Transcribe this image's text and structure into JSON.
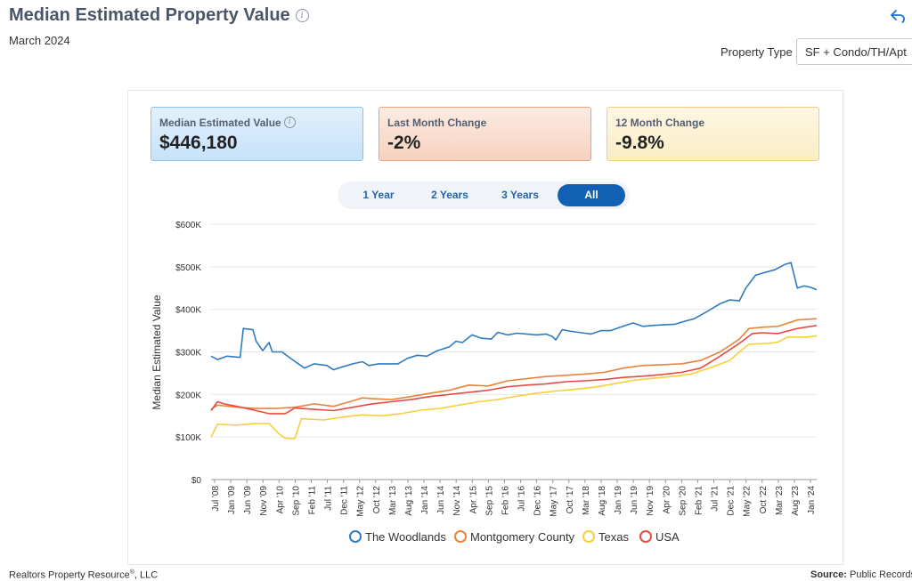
{
  "header": {
    "title": "Median Estimated Property Value",
    "subtitle": "March 2024",
    "property_type_label": "Property Type",
    "property_type_value": "SF + Condo/TH/Apt"
  },
  "cards": [
    {
      "label": "Median Estimated Value",
      "value": "$446,180"
    },
    {
      "label": "Last Month Change",
      "value": "-2%"
    },
    {
      "label": "12 Month Change",
      "value": "-9.8%"
    }
  ],
  "tabs": [
    "1 Year",
    "2 Years",
    "3 Years",
    "All"
  ],
  "active_tab": "All",
  "footer": {
    "left": "Realtors Property Resource",
    "left_mark": "®",
    "left_suffix": ", LLC",
    "source_label": "Source:",
    "source_text": "Public Records a"
  },
  "colors": {
    "The Woodlands": "#2f7bbf",
    "Montgomery County": "#e8833a",
    "Texas": "#f7cf3c",
    "USA": "#e54b44"
  },
  "chart_data": {
    "type": "line",
    "title": "",
    "xlabel": "",
    "ylabel": "Median Estimated Value",
    "ylim": [
      0,
      600000
    ],
    "yticks": [
      0,
      100000,
      200000,
      300000,
      400000,
      500000,
      600000
    ],
    "ytick_labels": [
      "$0",
      "$100K",
      "$200K",
      "$300K",
      "$400K",
      "$500K",
      "$600K"
    ],
    "x_tick_labels": [
      "Jul '08",
      "Jan '09",
      "Jun '09",
      "Nov '09",
      "Apr '10",
      "Sep '10",
      "Feb '11",
      "Jul '11",
      "Dec '11",
      "May '12",
      "Oct '12",
      "Mar '13",
      "Aug '13",
      "Jan '14",
      "Jun '14",
      "Nov '14",
      "Apr '15",
      "Sep '15",
      "Feb '16",
      "Jul '16",
      "Dec '16",
      "May '17",
      "Oct '17",
      "Mar '18",
      "Aug '18",
      "Jan '19",
      "Jun '19",
      "Nov '19",
      "Apr '20",
      "Sep '20",
      "Feb '21",
      "Jul '21",
      "Dec '21",
      "May '22",
      "Oct '22",
      "Mar '23",
      "Aug '23",
      "Jan '24"
    ],
    "x_range": [
      "2008-07",
      "2024-03"
    ],
    "grid": true,
    "legend_position": "bottom",
    "series": [
      {
        "name": "The Woodlands",
        "points": [
          [
            "2008-07",
            290000
          ],
          [
            "2008-09",
            282000
          ],
          [
            "2008-12",
            290000
          ],
          [
            "2009-04",
            287000
          ],
          [
            "2009-05",
            355000
          ],
          [
            "2009-08",
            352000
          ],
          [
            "2009-09",
            325000
          ],
          [
            "2009-11",
            303000
          ],
          [
            "2010-01",
            322000
          ],
          [
            "2010-02",
            300000
          ],
          [
            "2010-05",
            300000
          ],
          [
            "2010-08",
            283000
          ],
          [
            "2010-12",
            262000
          ],
          [
            "2011-03",
            272000
          ],
          [
            "2011-07",
            268000
          ],
          [
            "2011-09",
            258000
          ],
          [
            "2011-11",
            263000
          ],
          [
            "2012-03",
            272000
          ],
          [
            "2012-06",
            277000
          ],
          [
            "2012-08",
            268000
          ],
          [
            "2012-11",
            272000
          ],
          [
            "2013-05",
            272000
          ],
          [
            "2013-08",
            285000
          ],
          [
            "2013-11",
            292000
          ],
          [
            "2014-02",
            290000
          ],
          [
            "2014-05",
            302000
          ],
          [
            "2014-09",
            312000
          ],
          [
            "2014-11",
            325000
          ],
          [
            "2015-01",
            322000
          ],
          [
            "2015-04",
            340000
          ],
          [
            "2015-07",
            332000
          ],
          [
            "2015-10",
            330000
          ],
          [
            "2015-12",
            346000
          ],
          [
            "2016-03",
            340000
          ],
          [
            "2016-06",
            344000
          ],
          [
            "2016-09",
            342000
          ],
          [
            "2016-12",
            340000
          ],
          [
            "2017-03",
            342000
          ],
          [
            "2017-05",
            336000
          ],
          [
            "2017-06",
            328000
          ],
          [
            "2017-08",
            352000
          ],
          [
            "2017-11",
            348000
          ],
          [
            "2018-02",
            345000
          ],
          [
            "2018-05",
            342000
          ],
          [
            "2018-08",
            350000
          ],
          [
            "2018-11",
            350000
          ],
          [
            "2019-02",
            358000
          ],
          [
            "2019-06",
            368000
          ],
          [
            "2019-09",
            360000
          ],
          [
            "2019-12",
            362000
          ],
          [
            "2020-04",
            364000
          ],
          [
            "2020-07",
            365000
          ],
          [
            "2020-10",
            372000
          ],
          [
            "2021-01",
            378000
          ],
          [
            "2021-05",
            395000
          ],
          [
            "2021-09",
            413000
          ],
          [
            "2021-12",
            422000
          ],
          [
            "2022-03",
            420000
          ],
          [
            "2022-05",
            450000
          ],
          [
            "2022-08",
            480000
          ],
          [
            "2022-11",
            487000
          ],
          [
            "2023-02",
            493000
          ],
          [
            "2023-05",
            505000
          ],
          [
            "2023-07",
            510000
          ],
          [
            "2023-09",
            450000
          ],
          [
            "2023-11",
            455000
          ],
          [
            "2024-01",
            452000
          ],
          [
            "2024-03",
            446000
          ]
        ]
      },
      {
        "name": "Montgomery County",
        "points": [
          [
            "2008-07",
            165000
          ],
          [
            "2008-09",
            175000
          ],
          [
            "2009-03",
            170000
          ],
          [
            "2009-09",
            167000
          ],
          [
            "2010-03",
            167000
          ],
          [
            "2010-09",
            170000
          ],
          [
            "2011-03",
            178000
          ],
          [
            "2011-09",
            172000
          ],
          [
            "2012-03",
            185000
          ],
          [
            "2012-06",
            192000
          ],
          [
            "2012-09",
            190000
          ],
          [
            "2013-03",
            188000
          ],
          [
            "2013-09",
            195000
          ],
          [
            "2014-03",
            203000
          ],
          [
            "2014-09",
            210000
          ],
          [
            "2015-03",
            222000
          ],
          [
            "2015-09",
            220000
          ],
          [
            "2016-03",
            232000
          ],
          [
            "2016-09",
            237000
          ],
          [
            "2017-03",
            242000
          ],
          [
            "2017-09",
            245000
          ],
          [
            "2018-03",
            248000
          ],
          [
            "2018-09",
            252000
          ],
          [
            "2019-03",
            262000
          ],
          [
            "2019-09",
            268000
          ],
          [
            "2020-03",
            270000
          ],
          [
            "2020-09",
            272000
          ],
          [
            "2021-03",
            280000
          ],
          [
            "2021-09",
            300000
          ],
          [
            "2022-03",
            330000
          ],
          [
            "2022-06",
            355000
          ],
          [
            "2022-10",
            358000
          ],
          [
            "2023-03",
            360000
          ],
          [
            "2023-09",
            375000
          ],
          [
            "2024-03",
            378000
          ]
        ]
      },
      {
        "name": "Texas",
        "points": [
          [
            "2008-07",
            100000
          ],
          [
            "2008-09",
            130000
          ],
          [
            "2009-03",
            128000
          ],
          [
            "2009-09",
            132000
          ],
          [
            "2010-01",
            132000
          ],
          [
            "2010-04",
            108000
          ],
          [
            "2010-06",
            97000
          ],
          [
            "2010-09",
            96000
          ],
          [
            "2010-11",
            143000
          ],
          [
            "2011-06",
            140000
          ],
          [
            "2012-01",
            148000
          ],
          [
            "2012-06",
            152000
          ],
          [
            "2012-12",
            150000
          ],
          [
            "2013-06",
            155000
          ],
          [
            "2013-12",
            163000
          ],
          [
            "2014-06",
            167000
          ],
          [
            "2014-12",
            175000
          ],
          [
            "2015-06",
            183000
          ],
          [
            "2015-12",
            188000
          ],
          [
            "2016-06",
            196000
          ],
          [
            "2016-12",
            203000
          ],
          [
            "2017-06",
            208000
          ],
          [
            "2017-12",
            212000
          ],
          [
            "2018-06",
            217000
          ],
          [
            "2018-12",
            225000
          ],
          [
            "2019-06",
            233000
          ],
          [
            "2019-12",
            238000
          ],
          [
            "2020-06",
            242000
          ],
          [
            "2020-12",
            248000
          ],
          [
            "2021-06",
            263000
          ],
          [
            "2021-12",
            280000
          ],
          [
            "2022-03",
            300000
          ],
          [
            "2022-06",
            318000
          ],
          [
            "2022-12",
            320000
          ],
          [
            "2023-03",
            323000
          ],
          [
            "2023-06",
            335000
          ],
          [
            "2023-12",
            335000
          ],
          [
            "2024-03",
            338000
          ]
        ]
      },
      {
        "name": "USA",
        "points": [
          [
            "2008-07",
            162000
          ],
          [
            "2008-09",
            183000
          ],
          [
            "2008-11",
            178000
          ],
          [
            "2009-03",
            172000
          ],
          [
            "2009-09",
            162000
          ],
          [
            "2010-01",
            155000
          ],
          [
            "2010-06",
            155000
          ],
          [
            "2010-09",
            168000
          ],
          [
            "2011-03",
            165000
          ],
          [
            "2011-09",
            162000
          ],
          [
            "2012-03",
            170000
          ],
          [
            "2012-09",
            178000
          ],
          [
            "2013-03",
            183000
          ],
          [
            "2013-09",
            188000
          ],
          [
            "2014-03",
            195000
          ],
          [
            "2014-09",
            200000
          ],
          [
            "2015-03",
            205000
          ],
          [
            "2015-09",
            210000
          ],
          [
            "2016-03",
            218000
          ],
          [
            "2016-09",
            222000
          ],
          [
            "2017-03",
            225000
          ],
          [
            "2017-09",
            230000
          ],
          [
            "2018-03",
            232000
          ],
          [
            "2018-09",
            235000
          ],
          [
            "2019-03",
            240000
          ],
          [
            "2019-09",
            243000
          ],
          [
            "2020-03",
            247000
          ],
          [
            "2020-09",
            252000
          ],
          [
            "2021-03",
            262000
          ],
          [
            "2021-09",
            290000
          ],
          [
            "2022-03",
            320000
          ],
          [
            "2022-07",
            343000
          ],
          [
            "2022-10",
            345000
          ],
          [
            "2023-03",
            343000
          ],
          [
            "2023-09",
            355000
          ],
          [
            "2024-03",
            362000
          ]
        ]
      }
    ]
  }
}
